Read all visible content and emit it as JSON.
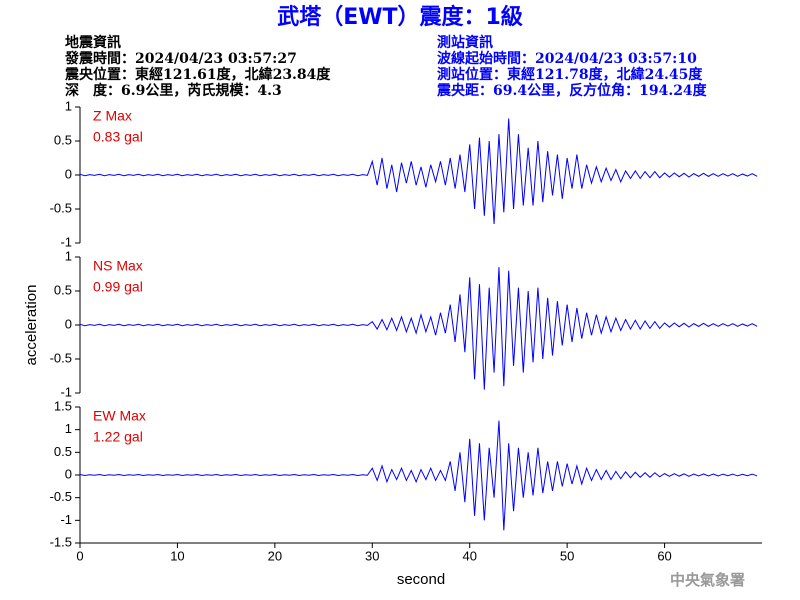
{
  "header": {
    "title": "武塔（EWT）震度：1級",
    "left": [
      "地震資訊",
      "發震時間：2024/04/23 03:57:27",
      "震央位置：東經121.61度，北緯23.84度",
      "深　度：6.9公里，芮氏規模：4.3"
    ],
    "right": [
      "測站資訊",
      "波線起始時間：2024/04/23 03:57:10",
      "測站位置：東經121.78度，北緯24.45度",
      "震央距：69.4公里，反方位角：194.24度"
    ],
    "footer": "中央氣象署"
  },
  "chart_data": [
    {
      "type": "line",
      "annotation": "Z Max",
      "max_text": "0.83 gal",
      "xlim": [
        0,
        70
      ],
      "ylim": [
        -1,
        1
      ],
      "yticks": [
        -1,
        -0.5,
        0,
        0.5,
        1
      ],
      "x": [
        0,
        0.5,
        1,
        1.5,
        2,
        2.5,
        3,
        3.5,
        4,
        4.5,
        5,
        5.5,
        6,
        6.5,
        7,
        7.5,
        8,
        8.5,
        9,
        9.5,
        10,
        10.5,
        11,
        11.5,
        12,
        12.5,
        13,
        13.5,
        14,
        14.5,
        15,
        15.5,
        16,
        16.5,
        17,
        17.5,
        18,
        18.5,
        19,
        19.5,
        20,
        20.5,
        21,
        21.5,
        22,
        22.5,
        23,
        23.5,
        24,
        24.5,
        25,
        25.5,
        26,
        26.5,
        27,
        27.5,
        28,
        28.5,
        29,
        29.5,
        30,
        30.5,
        31,
        31.5,
        32,
        32.5,
        33,
        33.5,
        34,
        34.5,
        35,
        35.5,
        36,
        36.5,
        37,
        37.5,
        38,
        38.5,
        39,
        39.5,
        40,
        40.5,
        41,
        41.5,
        42,
        42.5,
        43,
        43.5,
        44,
        44.5,
        45,
        45.5,
        46,
        46.5,
        47,
        47.5,
        48,
        48.5,
        49,
        49.5,
        50,
        50.5,
        51,
        51.5,
        52,
        52.5,
        53,
        53.5,
        54,
        54.5,
        55,
        55.5,
        56,
        56.5,
        57,
        57.5,
        58,
        58.5,
        59,
        59.5,
        60,
        60.5,
        61,
        61.5,
        62,
        62.5,
        63,
        63.5,
        64,
        64.5,
        65,
        65.5,
        66,
        66.5,
        67,
        67.5,
        68,
        68.5,
        69,
        69.5
      ],
      "series": [
        {
          "color": "#0000ff",
          "values": [
            0.01,
            -0.01,
            0.005,
            -0.005,
            0.01,
            -0.01,
            0.005,
            -0.005,
            0.01,
            -0.01,
            0.005,
            -0.005,
            0.01,
            -0.01,
            0.005,
            -0.005,
            0.01,
            -0.01,
            0.005,
            -0.005,
            0.01,
            -0.01,
            0.005,
            -0.005,
            0.01,
            -0.01,
            0.005,
            -0.005,
            0.01,
            -0.01,
            0.005,
            -0.005,
            0.01,
            -0.01,
            0.005,
            -0.005,
            0.01,
            -0.01,
            0.005,
            -0.005,
            0.01,
            -0.01,
            0.005,
            -0.005,
            0.01,
            -0.01,
            0.005,
            -0.005,
            0.01,
            -0.01,
            0.005,
            -0.005,
            0.01,
            -0.01,
            0.005,
            -0.005,
            0.01,
            -0.01,
            0.005,
            -0.005,
            0.2,
            -0.15,
            0.25,
            -0.2,
            0.15,
            -0.25,
            0.18,
            -0.12,
            0.2,
            -0.15,
            0.12,
            -0.18,
            0.15,
            -0.1,
            0.2,
            -0.15,
            0.25,
            -0.2,
            0.3,
            -0.25,
            0.45,
            -0.5,
            0.55,
            -0.6,
            0.5,
            -0.72,
            0.6,
            -0.55,
            0.83,
            -0.5,
            0.6,
            -0.45,
            0.4,
            -0.45,
            0.5,
            -0.4,
            0.35,
            -0.3,
            0.3,
            -0.35,
            0.25,
            -0.2,
            0.3,
            -0.2,
            0.15,
            -0.12,
            0.12,
            -0.1,
            0.1,
            -0.08,
            0.08,
            -0.1,
            0.06,
            -0.05,
            0.06,
            -0.05,
            0.05,
            -0.04,
            0.05,
            -0.04,
            0.03,
            -0.03,
            0.03,
            -0.025,
            0.025,
            -0.03,
            0.02,
            -0.02,
            0.025,
            -0.02,
            0.02,
            -0.02,
            0.02,
            -0.015,
            0.02,
            -0.02,
            0.015,
            -0.015,
            0.02,
            -0.02
          ]
        }
      ]
    },
    {
      "type": "line",
      "annotation": "NS Max",
      "max_text": "0.99 gal",
      "ylabel": "acceleration",
      "xlim": [
        0,
        70
      ],
      "ylim": [
        -1,
        1
      ],
      "yticks": [
        -1,
        -0.5,
        0,
        0.5,
        1
      ],
      "x": [
        0,
        0.5,
        1,
        1.5,
        2,
        2.5,
        3,
        3.5,
        4,
        4.5,
        5,
        5.5,
        6,
        6.5,
        7,
        7.5,
        8,
        8.5,
        9,
        9.5,
        10,
        10.5,
        11,
        11.5,
        12,
        12.5,
        13,
        13.5,
        14,
        14.5,
        15,
        15.5,
        16,
        16.5,
        17,
        17.5,
        18,
        18.5,
        19,
        19.5,
        20,
        20.5,
        21,
        21.5,
        22,
        22.5,
        23,
        23.5,
        24,
        24.5,
        25,
        25.5,
        26,
        26.5,
        27,
        27.5,
        28,
        28.5,
        29,
        29.5,
        30,
        30.5,
        31,
        31.5,
        32,
        32.5,
        33,
        33.5,
        34,
        34.5,
        35,
        35.5,
        36,
        36.5,
        37,
        37.5,
        38,
        38.5,
        39,
        39.5,
        40,
        40.5,
        41,
        41.5,
        42,
        42.5,
        43,
        43.5,
        44,
        44.5,
        45,
        45.5,
        46,
        46.5,
        47,
        47.5,
        48,
        48.5,
        49,
        49.5,
        50,
        50.5,
        51,
        51.5,
        52,
        52.5,
        53,
        53.5,
        54,
        54.5,
        55,
        55.5,
        56,
        56.5,
        57,
        57.5,
        58,
        58.5,
        59,
        59.5,
        60,
        60.5,
        61,
        61.5,
        62,
        62.5,
        63,
        63.5,
        64,
        64.5,
        65,
        65.5,
        66,
        66.5,
        67,
        67.5,
        68,
        68.5,
        69,
        69.5
      ],
      "series": [
        {
          "color": "#0000ff",
          "values": [
            0.01,
            -0.01,
            0.005,
            -0.005,
            0.01,
            -0.01,
            0.005,
            -0.005,
            0.01,
            -0.01,
            0.005,
            -0.005,
            0.01,
            -0.01,
            0.005,
            -0.005,
            0.01,
            -0.01,
            0.005,
            -0.005,
            0.01,
            -0.01,
            0.005,
            -0.005,
            0.01,
            -0.01,
            0.005,
            -0.005,
            0.01,
            -0.01,
            0.005,
            -0.005,
            0.01,
            -0.01,
            0.005,
            -0.005,
            0.01,
            -0.01,
            0.005,
            -0.005,
            0.01,
            -0.01,
            0.005,
            -0.005,
            0.01,
            -0.01,
            0.005,
            -0.005,
            0.01,
            -0.01,
            0.005,
            -0.005,
            0.01,
            -0.01,
            0.005,
            -0.005,
            0.01,
            -0.01,
            0.005,
            -0.005,
            0.05,
            -0.06,
            0.08,
            -0.07,
            0.1,
            -0.08,
            0.12,
            -0.1,
            0.1,
            -0.12,
            0.15,
            -0.1,
            0.12,
            -0.15,
            0.18,
            -0.12,
            0.3,
            -0.25,
            0.45,
            -0.4,
            0.7,
            -0.8,
            0.6,
            -0.95,
            0.55,
            -0.7,
            0.85,
            -0.9,
            0.8,
            -0.6,
            0.55,
            -0.7,
            0.5,
            -0.55,
            0.55,
            -0.5,
            0.4,
            -0.45,
            0.35,
            -0.3,
            0.3,
            -0.25,
            0.25,
            -0.2,
            0.18,
            -0.15,
            0.15,
            -0.12,
            0.12,
            -0.1,
            0.1,
            -0.08,
            0.08,
            -0.06,
            0.07,
            -0.06,
            0.06,
            -0.05,
            0.05,
            -0.05,
            0.03,
            -0.03,
            0.03,
            -0.025,
            0.025,
            -0.03,
            0.02,
            -0.02,
            0.025,
            -0.02,
            0.02,
            -0.02,
            0.02,
            -0.015,
            0.02,
            -0.02,
            0.015,
            -0.015,
            0.02,
            -0.02
          ]
        }
      ]
    },
    {
      "type": "line",
      "annotation": "EW Max",
      "max_text": "1.22 gal",
      "xlabel": "second",
      "xlim": [
        0,
        70
      ],
      "xticks": [
        0,
        10,
        20,
        30,
        40,
        50,
        60
      ],
      "ylim": [
        -1.5,
        1.5
      ],
      "yticks": [
        -1.5,
        -1,
        -0.5,
        0,
        0.5,
        1,
        1.5
      ],
      "x": [
        0,
        0.5,
        1,
        1.5,
        2,
        2.5,
        3,
        3.5,
        4,
        4.5,
        5,
        5.5,
        6,
        6.5,
        7,
        7.5,
        8,
        8.5,
        9,
        9.5,
        10,
        10.5,
        11,
        11.5,
        12,
        12.5,
        13,
        13.5,
        14,
        14.5,
        15,
        15.5,
        16,
        16.5,
        17,
        17.5,
        18,
        18.5,
        19,
        19.5,
        20,
        20.5,
        21,
        21.5,
        22,
        22.5,
        23,
        23.5,
        24,
        24.5,
        25,
        25.5,
        26,
        26.5,
        27,
        27.5,
        28,
        28.5,
        29,
        29.5,
        30,
        30.5,
        31,
        31.5,
        32,
        32.5,
        33,
        33.5,
        34,
        34.5,
        35,
        35.5,
        36,
        36.5,
        37,
        37.5,
        38,
        38.5,
        39,
        39.5,
        40,
        40.5,
        41,
        41.5,
        42,
        42.5,
        43,
        43.5,
        44,
        44.5,
        45,
        45.5,
        46,
        46.5,
        47,
        47.5,
        48,
        48.5,
        49,
        49.5,
        50,
        50.5,
        51,
        51.5,
        52,
        52.5,
        53,
        53.5,
        54,
        54.5,
        55,
        55.5,
        56,
        56.5,
        57,
        57.5,
        58,
        58.5,
        59,
        59.5,
        60,
        60.5,
        61,
        61.5,
        62,
        62.5,
        63,
        63.5,
        64,
        64.5,
        65,
        65.5,
        66,
        66.5,
        67,
        67.5,
        68,
        68.5,
        69,
        69.5
      ],
      "series": [
        {
          "color": "#0000ff",
          "values": [
            0.01,
            -0.01,
            0.005,
            -0.005,
            0.01,
            -0.01,
            0.005,
            -0.005,
            0.01,
            -0.01,
            0.005,
            -0.005,
            0.01,
            -0.01,
            0.005,
            -0.005,
            0.01,
            -0.01,
            0.005,
            -0.005,
            0.01,
            -0.01,
            0.005,
            -0.005,
            0.01,
            -0.01,
            0.005,
            -0.005,
            0.01,
            -0.01,
            0.005,
            -0.005,
            0.01,
            -0.01,
            0.005,
            -0.005,
            0.01,
            -0.01,
            0.005,
            -0.005,
            0.01,
            -0.01,
            0.005,
            -0.005,
            0.01,
            -0.01,
            0.005,
            -0.005,
            0.01,
            -0.01,
            0.005,
            -0.005,
            0.01,
            -0.01,
            0.005,
            -0.005,
            0.01,
            -0.01,
            0.005,
            -0.005,
            0.15,
            -0.12,
            0.2,
            -0.15,
            0.12,
            -0.1,
            0.15,
            -0.12,
            0.1,
            -0.15,
            0.12,
            -0.1,
            0.15,
            -0.12,
            0.1,
            -0.12,
            0.3,
            -0.35,
            0.5,
            -0.6,
            0.8,
            -0.9,
            0.7,
            -1.0,
            0.6,
            -0.5,
            1.2,
            -1.22,
            0.7,
            -0.8,
            0.6,
            -0.5,
            0.5,
            -0.45,
            0.6,
            -0.4,
            0.3,
            -0.35,
            0.3,
            -0.25,
            0.25,
            -0.2,
            0.2,
            -0.2,
            0.15,
            -0.12,
            0.12,
            -0.1,
            0.1,
            -0.1,
            0.08,
            -0.08,
            0.07,
            -0.06,
            0.06,
            -0.05,
            0.05,
            -0.05,
            0.05,
            -0.04,
            0.03,
            -0.03,
            0.03,
            -0.025,
            0.025,
            -0.03,
            0.02,
            -0.02,
            0.025,
            -0.02,
            0.02,
            -0.02,
            0.02,
            -0.015,
            0.02,
            -0.02,
            0.015,
            -0.015,
            0.02,
            -0.02
          ]
        }
      ]
    }
  ]
}
